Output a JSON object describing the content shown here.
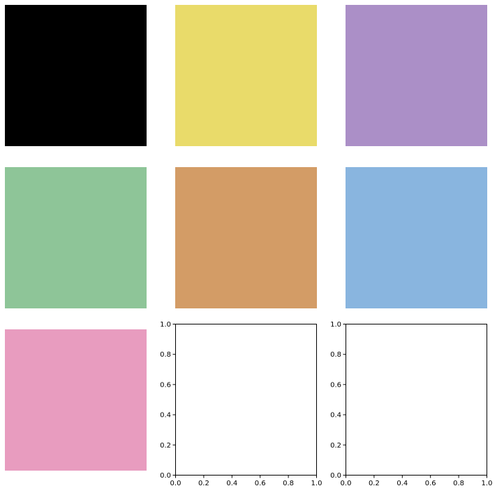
{
  "chart_data": [
    {
      "type": "swatch",
      "color": "#000000"
    },
    {
      "type": "swatch",
      "color": "#e9db6a"
    },
    {
      "type": "swatch",
      "color": "#ab8fc7"
    },
    {
      "type": "swatch",
      "color": "#8ec598"
    },
    {
      "type": "swatch",
      "color": "#d39c66"
    },
    {
      "type": "swatch",
      "color": "#89b5df"
    },
    {
      "type": "swatch",
      "color": "#e89cbf"
    },
    {
      "type": "empty_axes",
      "xlim": [
        0,
        1
      ],
      "ylim": [
        0,
        1
      ],
      "xticks": [
        "0.0",
        "0.2",
        "0.4",
        "0.6",
        "0.8",
        "1.0"
      ],
      "yticks": [
        "0.0",
        "0.2",
        "0.4",
        "0.6",
        "0.8",
        "1.0"
      ]
    },
    {
      "type": "empty_axes",
      "xlim": [
        0,
        1
      ],
      "ylim": [
        0,
        1
      ],
      "xticks": [
        "0.0",
        "0.2",
        "0.4",
        "0.6",
        "0.8",
        "1.0"
      ],
      "yticks": [
        "0.0",
        "0.2",
        "0.4",
        "0.6",
        "0.8",
        "1.0"
      ]
    }
  ]
}
